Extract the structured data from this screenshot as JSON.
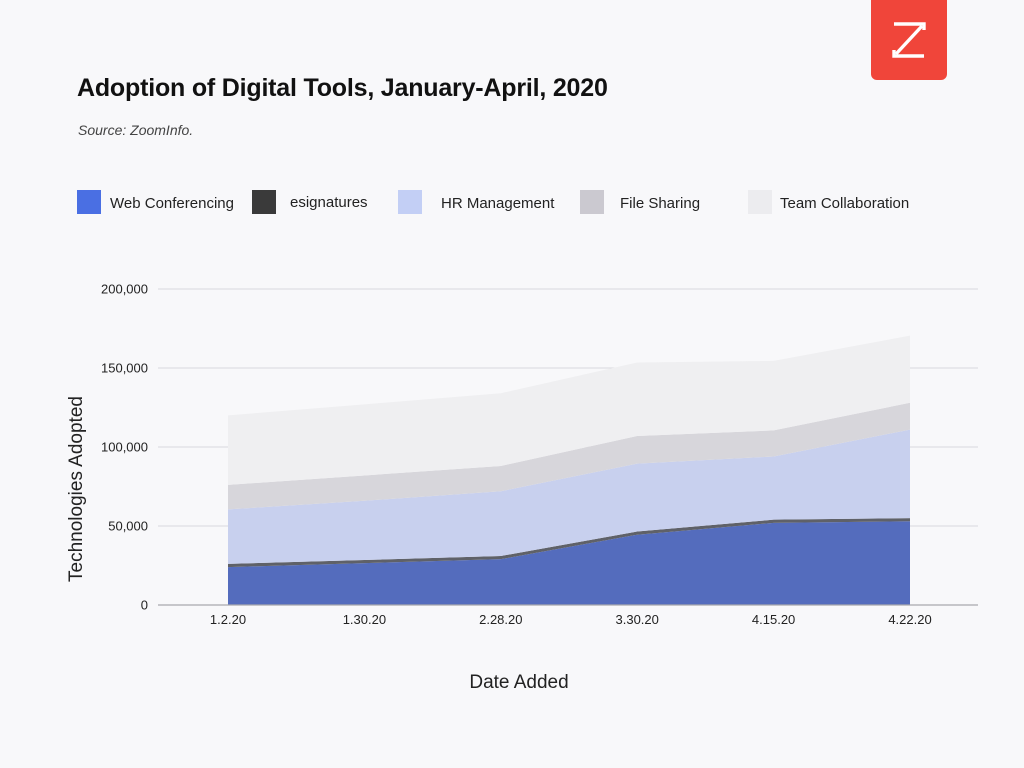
{
  "header": {
    "title": "Adoption of Digital Tools, January-April, 2020",
    "source": "Source: ZoomInfo.",
    "logo_icon": "zoominfo-z-logo-icon"
  },
  "chart_data": {
    "type": "area",
    "stacked": true,
    "title": "Adoption of Digital Tools, January-April, 2020",
    "xlabel": "Date Added",
    "ylabel": "Technologies Adopted",
    "categories": [
      "1.2.20",
      "1.30.20",
      "2.28.20",
      "3.30.20",
      "4.15.20",
      "4.22.20"
    ],
    "ylim": [
      0,
      200000
    ],
    "yticks": [
      0,
      50000,
      100000,
      150000,
      200000
    ],
    "ytick_labels": [
      "0",
      "50,000",
      "100,000",
      "150,000",
      "200,000"
    ],
    "grid": true,
    "legend_position": "top",
    "series": [
      {
        "name": "Web Conferencing",
        "color": "#4a6fe3",
        "fill": "#546cbd",
        "values": [
          24000,
          26500,
          29000,
          44500,
          52000,
          53000
        ]
      },
      {
        "name": "esignatures",
        "color": "#3a3a3a",
        "fill": "#5f6168",
        "values": [
          2000,
          2000,
          2000,
          2000,
          2000,
          2000
        ]
      },
      {
        "name": "HR Management",
        "color": "#c3cff5",
        "fill": "#c8d0ee",
        "values": [
          34500,
          37500,
          41000,
          43000,
          40000,
          56000
        ]
      },
      {
        "name": "File Sharing",
        "color": "#cbc9d0",
        "fill": "#d7d6db",
        "values": [
          15500,
          16000,
          16000,
          17500,
          16500,
          17000
        ]
      },
      {
        "name": "Team Collaboration",
        "color": "#ececef",
        "fill": "#efeff1",
        "values": [
          44000,
          45000,
          46000,
          46500,
          44000,
          42500
        ]
      }
    ]
  }
}
